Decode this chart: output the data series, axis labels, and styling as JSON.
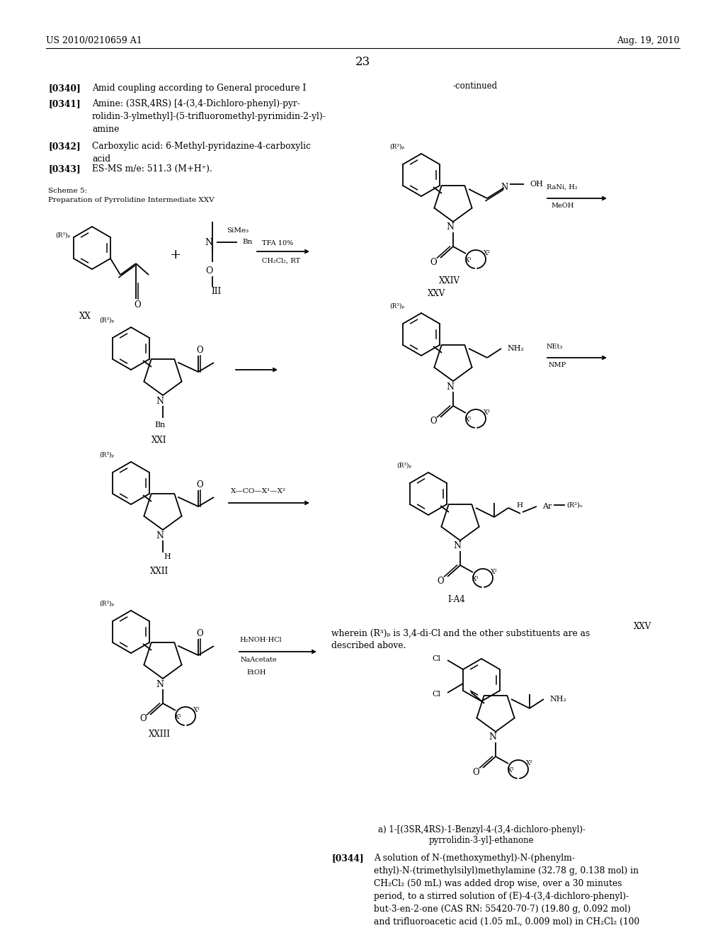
{
  "page_header_left": "US 2010/0210659 A1",
  "page_header_right": "Aug. 19, 2010",
  "page_number": "23",
  "background_color": "#ffffff",
  "text_color": "#000000",
  "para_0340": "[0340]    Amid coupling according to General procedure I",
  "para_0341_tag": "[0341]",
  "para_0341_text": "Amine: (3SR,4RS) [4-(3,4-Dichloro-phenyl)-pyr-\nrolidin-3-ylmethyl]-(5-trifluoromethyl-pyrimidin-2-yl)-\namine",
  "para_0342_tag": "[0342]",
  "para_0342_text": "Carboxylic acid: 6-Methyl-pyridazine-4-carboxylic\nacid",
  "para_0343_tag": "[0343]",
  "para_0343_text": "ES-MS m/e: 511.3 (M+H+).",
  "scheme_line1": "Scheme 5:",
  "scheme_line2": "Preparation of Pyrrolidine Intermediate XXV",
  "continued_label": "-continued",
  "wherein_text": "wherein (R³)ₚ is 3,4-di-Cl and the other substituents are as\ndescribed above.",
  "xxv_label_right": "XXV",
  "label_a": "a) 1-[(3SR,4RS)-1-Benzyl-4-(3,4-dichloro-phenyl)-\n          pyrrolidin-3-yl]-ethanone",
  "para_0344_tag": "[0344]",
  "para_0344_text": "A solution of N-(methoxymethyl)-N-(phenylm-\nethyl)-N-(trimethylsilyl)methylamine (32.78 g, 0.138 mol) in\nCH₂Cl₂ (50 mL) was added drop wise, over a 30 minutes\nperiod, to a stirred solution of (E)-4-(3,4-dichloro-phenyl)-\nbut-3-en-2-one (CAS RN: 55420-70-7) (19.80 g, 0.092 mol)\nand trifluoroacetic acid (1.05 mL, 0.009 mol) in CH₂Cl₂ (100"
}
